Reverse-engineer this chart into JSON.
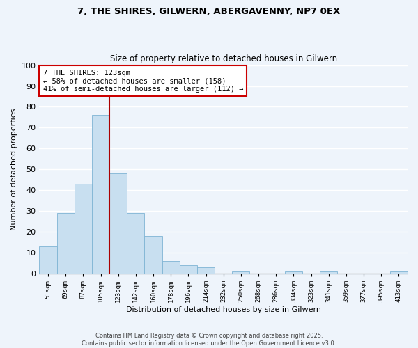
{
  "title": "7, THE SHIRES, GILWERN, ABERGAVENNY, NP7 0EX",
  "subtitle": "Size of property relative to detached houses in Gilwern",
  "xlabel": "Distribution of detached houses by size in Gilwern",
  "ylabel": "Number of detached properties",
  "bar_color": "#c8dff0",
  "bar_edge_color": "#7fb4d4",
  "categories": [
    "51sqm",
    "69sqm",
    "87sqm",
    "105sqm",
    "123sqm",
    "142sqm",
    "160sqm",
    "178sqm",
    "196sqm",
    "214sqm",
    "232sqm",
    "250sqm",
    "268sqm",
    "286sqm",
    "304sqm",
    "323sqm",
    "341sqm",
    "359sqm",
    "377sqm",
    "395sqm",
    "413sqm"
  ],
  "values": [
    13,
    29,
    43,
    76,
    48,
    29,
    18,
    6,
    4,
    3,
    0,
    1,
    0,
    0,
    1,
    0,
    1,
    0,
    0,
    0,
    1
  ],
  "property_line_idx": 4,
  "property_line_color": "#aa0000",
  "annotation_title": "7 THE SHIRES: 123sqm",
  "annotation_line1": "← 58% of detached houses are smaller (158)",
  "annotation_line2": "41% of semi-detached houses are larger (112) →",
  "annotation_box_color": "#ffffff",
  "annotation_box_edge": "#cc0000",
  "footer_line1": "Contains HM Land Registry data © Crown copyright and database right 2025.",
  "footer_line2": "Contains public sector information licensed under the Open Government Licence v3.0.",
  "ylim": [
    0,
    100
  ],
  "yticks": [
    0,
    10,
    20,
    30,
    40,
    50,
    60,
    70,
    80,
    90,
    100
  ],
  "background_color": "#eef4fb",
  "grid_color": "#ffffff"
}
